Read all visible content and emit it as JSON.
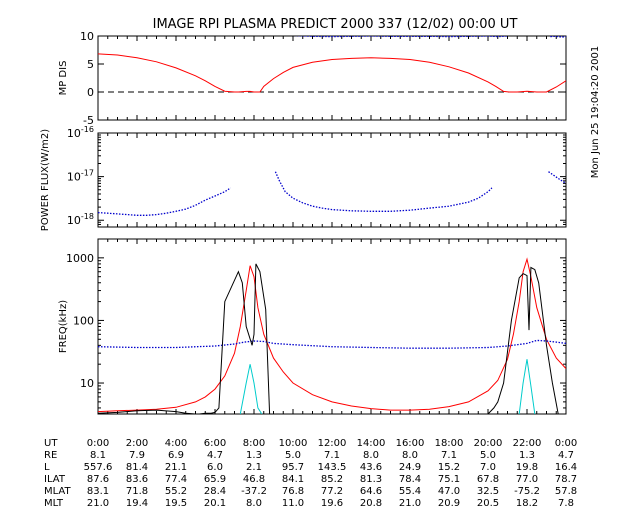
{
  "title": "IMAGE  RPI PLASMA PREDICT 2000 337 (12/02) 00:00 UT",
  "side_stamp": "Mon Jun 25 19:04:20 2001",
  "colors": {
    "red": "#ff0000",
    "blue": "#0000cc",
    "black": "#000000",
    "cyan": "#00cccc"
  },
  "chart_data": [
    {
      "type": "line",
      "panel": "mp",
      "ylabel": "MP DIS",
      "ylim": [
        -5,
        10
      ],
      "yticks": [
        {
          "v": 10,
          "label": "10"
        },
        {
          "v": 5,
          "label": "5"
        },
        {
          "v": 0,
          "label": "0"
        },
        {
          "v": -5,
          "label": "-5"
        }
      ],
      "xlim": [
        0,
        24
      ],
      "reference_line": {
        "y": 0,
        "style": "dashed"
      },
      "series": [
        {
          "color": "red",
          "x": [
            0,
            1,
            2,
            3,
            4,
            5,
            5.5,
            6,
            6.5,
            7.0,
            7.2,
            7.6,
            7.8,
            8,
            8.3,
            8.5,
            9,
            9.5,
            10,
            11,
            12,
            13,
            14,
            15,
            16,
            17,
            18,
            19,
            20,
            20.4,
            20.8,
            21.1,
            21.5,
            22,
            22.5,
            22.8,
            23,
            23.5,
            24
          ],
          "y": [
            6.8,
            6.6,
            6.1,
            5.4,
            4.3,
            2.9,
            2.0,
            1.0,
            0.15,
            0,
            0,
            0.1,
            0.1,
            0,
            0,
            1.0,
            2.4,
            3.5,
            4.4,
            5.3,
            5.8,
            6.0,
            6.1,
            6.0,
            5.8,
            5.3,
            4.5,
            3.4,
            1.8,
            1.0,
            0.1,
            0,
            0,
            0.15,
            0,
            0,
            0,
            0.9,
            2.0
          ]
        },
        {
          "color": "blue",
          "x": [
            9.5,
            10,
            11,
            12,
            13,
            14,
            15,
            16,
            17,
            18,
            19,
            20,
            20.5,
            21
          ],
          "y": [
            10.3,
            10.1,
            9.95,
            9.9,
            9.95,
            10.0,
            9.95,
            9.95,
            9.95,
            9.9,
            9.95,
            10.0,
            9.9,
            10.0
          ]
        },
        {
          "color": "blue",
          "x": [
            23.2,
            23.4,
            23.6,
            23.8,
            24
          ],
          "y": [
            9.9,
            9.95,
            9.9,
            9.8,
            9.9
          ]
        }
      ]
    },
    {
      "type": "line",
      "panel": "flux",
      "ylabel": "POWER FLUX(W/m2)",
      "yscale": "log",
      "ylim": [
        7e-19,
        1e-16
      ],
      "yticks": [
        {
          "v": 1e-16,
          "base": "10",
          "exp": "-16"
        },
        {
          "v": 1e-17,
          "base": "10",
          "exp": "-17"
        },
        {
          "v": 1e-18,
          "base": "10",
          "exp": "-18"
        }
      ],
      "xlim": [
        0,
        24
      ],
      "series": [
        {
          "color": "blue",
          "x": [
            0,
            0.5,
            1,
            1.5,
            2,
            2.5,
            3,
            3.5,
            4,
            4.5,
            5,
            5.5,
            6,
            6.5,
            6.8
          ],
          "y": [
            1.5e-18,
            1.45e-18,
            1.4e-18,
            1.35e-18,
            1.3e-18,
            1.3e-18,
            1.35e-18,
            1.45e-18,
            1.6e-18,
            1.8e-18,
            2.2e-18,
            2.9e-18,
            3.6e-18,
            4.5e-18,
            5.5e-18
          ]
        },
        {
          "color": "blue",
          "x": [
            9.1,
            9.3,
            9.6,
            10,
            10.5,
            11,
            11.5,
            12,
            13,
            14,
            15,
            16,
            17,
            18,
            19,
            19.5,
            20,
            20.2
          ],
          "y": [
            1.3e-17,
            8e-18,
            4.5e-18,
            3.2e-18,
            2.5e-18,
            2.1e-18,
            1.9e-18,
            1.75e-18,
            1.65e-18,
            1.6e-18,
            1.6e-18,
            1.7e-18,
            1.9e-18,
            2.1e-18,
            2.6e-18,
            3.2e-18,
            4.5e-18,
            5.5e-18
          ]
        },
        {
          "color": "blue",
          "x": [
            23.1,
            23.4,
            23.7,
            24
          ],
          "y": [
            1.3e-17,
            1.05e-17,
            8.5e-18,
            7e-18
          ]
        }
      ]
    },
    {
      "type": "line",
      "panel": "freq",
      "ylabel": "FREQ(kHz)",
      "yscale": "log",
      "ylim": [
        3.2,
        2000
      ],
      "yticks": [
        {
          "v": 1000,
          "label": "1000"
        },
        {
          "v": 100,
          "label": "100"
        },
        {
          "v": 10,
          "label": "10"
        }
      ],
      "xlim": [
        0,
        24
      ],
      "series": [
        {
          "color": "red",
          "x": [
            0,
            1,
            2,
            3,
            4,
            5,
            5.5,
            6,
            6.5,
            7,
            7.3,
            7.6,
            7.8,
            8.0,
            8.2,
            8.5,
            9,
            9.5,
            10,
            11,
            12,
            13,
            14,
            15,
            16,
            17,
            18,
            19,
            20,
            20.5,
            21,
            21.3,
            21.6,
            21.8,
            22.0,
            22.2,
            22.5,
            23,
            23.5,
            24
          ],
          "y": [
            3.5,
            3.6,
            3.7,
            3.8,
            4.1,
            5.0,
            6.0,
            8.0,
            13,
            30,
            80,
            300,
            750,
            500,
            160,
            60,
            25,
            15,
            10,
            6.5,
            5.0,
            4.3,
            3.9,
            3.7,
            3.7,
            3.8,
            4.2,
            5.0,
            7.5,
            11,
            24,
            60,
            200,
            600,
            950,
            500,
            160,
            50,
            25,
            17
          ]
        },
        {
          "color": "blue",
          "x": [
            0,
            2,
            4,
            6,
            7,
            7.5,
            8,
            8.5,
            9,
            10,
            12,
            14,
            16,
            18,
            20,
            21,
            22,
            22.5,
            23,
            23.5,
            24
          ],
          "y": [
            38,
            37,
            37,
            39,
            42,
            45,
            47,
            46,
            43,
            41,
            38,
            37,
            36,
            36,
            37,
            39,
            43,
            48,
            47,
            45,
            43
          ]
        },
        {
          "color": "black",
          "x": [
            0,
            1,
            2,
            3,
            4,
            4.5,
            5,
            5.2,
            5.5,
            5.8,
            6,
            6.2,
            6.5,
            7.2,
            7.4,
            7.6,
            7.9,
            8.0,
            8.1,
            8.3,
            8.6,
            8.8,
            9.0
          ],
          "y": [
            3.3,
            3.4,
            3.6,
            3.7,
            3.5,
            3.3,
            3.2,
            3.2,
            3.3,
            3.3,
            3.4,
            4.0,
            200,
            600,
            400,
            80,
            40,
            60,
            800,
            600,
            150,
            3.2,
            3.2
          ]
        },
        {
          "color": "black",
          "x": [
            19.5,
            20.0,
            20.3,
            20.5,
            20.8,
            21.2,
            21.6,
            21.8,
            22.0,
            22.1,
            22.2,
            22.4,
            22.6,
            23,
            23.3,
            23.6
          ],
          "y": [
            3.2,
            3.2,
            4.0,
            5.0,
            10,
            100,
            480,
            560,
            520,
            70,
            700,
            650,
            400,
            40,
            10,
            3.2
          ]
        },
        {
          "color": "cyan",
          "x": [
            7.3,
            7.6,
            7.8,
            8.0,
            8.2,
            8.4
          ],
          "y": [
            3.2,
            10,
            20,
            10,
            4,
            3.2
          ]
        },
        {
          "color": "cyan",
          "x": [
            21.6,
            21.8,
            22.0,
            22.2,
            22.4
          ],
          "y": [
            3.2,
            10,
            24,
            9,
            3.2
          ]
        }
      ]
    }
  ],
  "ephemeris": {
    "labels": [
      "UT",
      "RE",
      "L",
      "ILAT",
      "MLAT",
      "MLT"
    ],
    "columns": [
      [
        "0:00",
        "8.1",
        "557.6",
        "87.6",
        "83.1",
        "21.0"
      ],
      [
        "2:00",
        "7.9",
        "81.4",
        "83.6",
        "71.8",
        "19.4"
      ],
      [
        "4:00",
        "6.9",
        "21.1",
        "77.4",
        "55.2",
        "19.5"
      ],
      [
        "6:00",
        "4.7",
        "6.0",
        "65.9",
        "28.4",
        "20.1"
      ],
      [
        "8:00",
        "1.3",
        "2.1",
        "46.8",
        "-37.2",
        "8.0"
      ],
      [
        "10:00",
        "5.0",
        "95.7",
        "84.1",
        "76.8",
        "11.0"
      ],
      [
        "12:00",
        "7.1",
        "143.5",
        "85.2",
        "77.2",
        "19.6"
      ],
      [
        "14:00",
        "8.0",
        "43.6",
        "81.3",
        "64.6",
        "20.8"
      ],
      [
        "16:00",
        "8.0",
        "24.9",
        "78.4",
        "55.4",
        "21.0"
      ],
      [
        "18:00",
        "7.1",
        "15.2",
        "75.1",
        "47.0",
        "20.9"
      ],
      [
        "20:00",
        "5.0",
        "7.0",
        "67.8",
        "32.5",
        "20.5"
      ],
      [
        "22:00",
        "1.3",
        "19.8",
        "77.0",
        "-75.2",
        "18.2"
      ],
      [
        "0:00",
        "4.7",
        "16.4",
        "78.7",
        "57.8",
        "7.8"
      ]
    ]
  }
}
